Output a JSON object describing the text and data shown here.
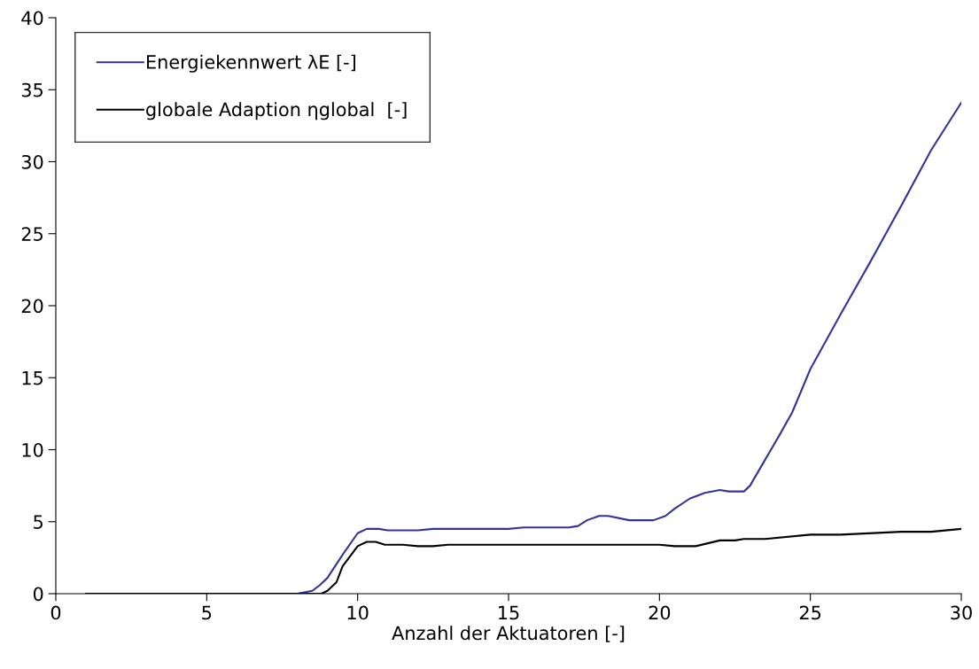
{
  "chart_data": {
    "type": "line",
    "xlabel": "Anzahl der Aktuatoren [-]",
    "xlim": [
      0,
      30
    ],
    "xticks": [
      0,
      5,
      10,
      15,
      20,
      25,
      30
    ],
    "ylim": [
      0,
      40
    ],
    "yticks": [
      0,
      5,
      10,
      15,
      20,
      25,
      30,
      35,
      40
    ],
    "grid": false,
    "legend": "top left",
    "marker": "none",
    "line_style": "solid",
    "series": [
      {
        "name": "Energiekennwert λE [-]",
        "color": "#333399",
        "x": [
          7,
          8,
          8.5,
          8.75,
          9.0,
          9.5,
          10.0,
          10.3,
          10.7,
          11,
          12,
          12.5,
          14,
          15,
          15.5,
          17,
          17.3,
          17.6,
          18,
          18.3,
          19,
          19.8,
          20.2,
          20.5,
          21,
          21.5,
          22,
          22.3,
          22.8,
          23,
          23.5,
          24,
          24.4,
          25,
          26,
          27,
          28,
          29,
          30
        ],
        "values": [
          0,
          0,
          0.2,
          0.6,
          1.1,
          2.7,
          4.2,
          4.5,
          4.5,
          4.4,
          4.4,
          4.5,
          4.5,
          4.5,
          4.6,
          4.6,
          4.7,
          5.1,
          5.4,
          5.4,
          5.1,
          5.1,
          5.4,
          5.9,
          6.6,
          7.0,
          7.2,
          7.1,
          7.1,
          7.5,
          9.3,
          11.1,
          12.6,
          15.6,
          19.4,
          23.1,
          26.9,
          30.8,
          34.1
        ]
      },
      {
        "name": "globale Adaption ηglobal  [-]",
        "color": "#000000",
        "x": [
          1,
          2,
          3,
          4,
          5,
          6,
          7,
          8,
          8.8,
          9.0,
          9.3,
          9.5,
          10.0,
          10.3,
          10.6,
          10.9,
          11.5,
          12,
          12.5,
          13,
          15,
          17,
          20,
          20.5,
          21.2,
          21.6,
          22,
          22.5,
          22.8,
          23.5,
          25,
          26,
          28,
          29,
          30
        ],
        "values": [
          0,
          0,
          0,
          0,
          0,
          0,
          0,
          0,
          0,
          0.2,
          0.8,
          1.9,
          3.3,
          3.6,
          3.6,
          3.4,
          3.4,
          3.3,
          3.3,
          3.4,
          3.4,
          3.4,
          3.4,
          3.3,
          3.3,
          3.5,
          3.7,
          3.7,
          3.8,
          3.8,
          4.1,
          4.1,
          4.3,
          4.3,
          4.5
        ]
      }
    ]
  }
}
